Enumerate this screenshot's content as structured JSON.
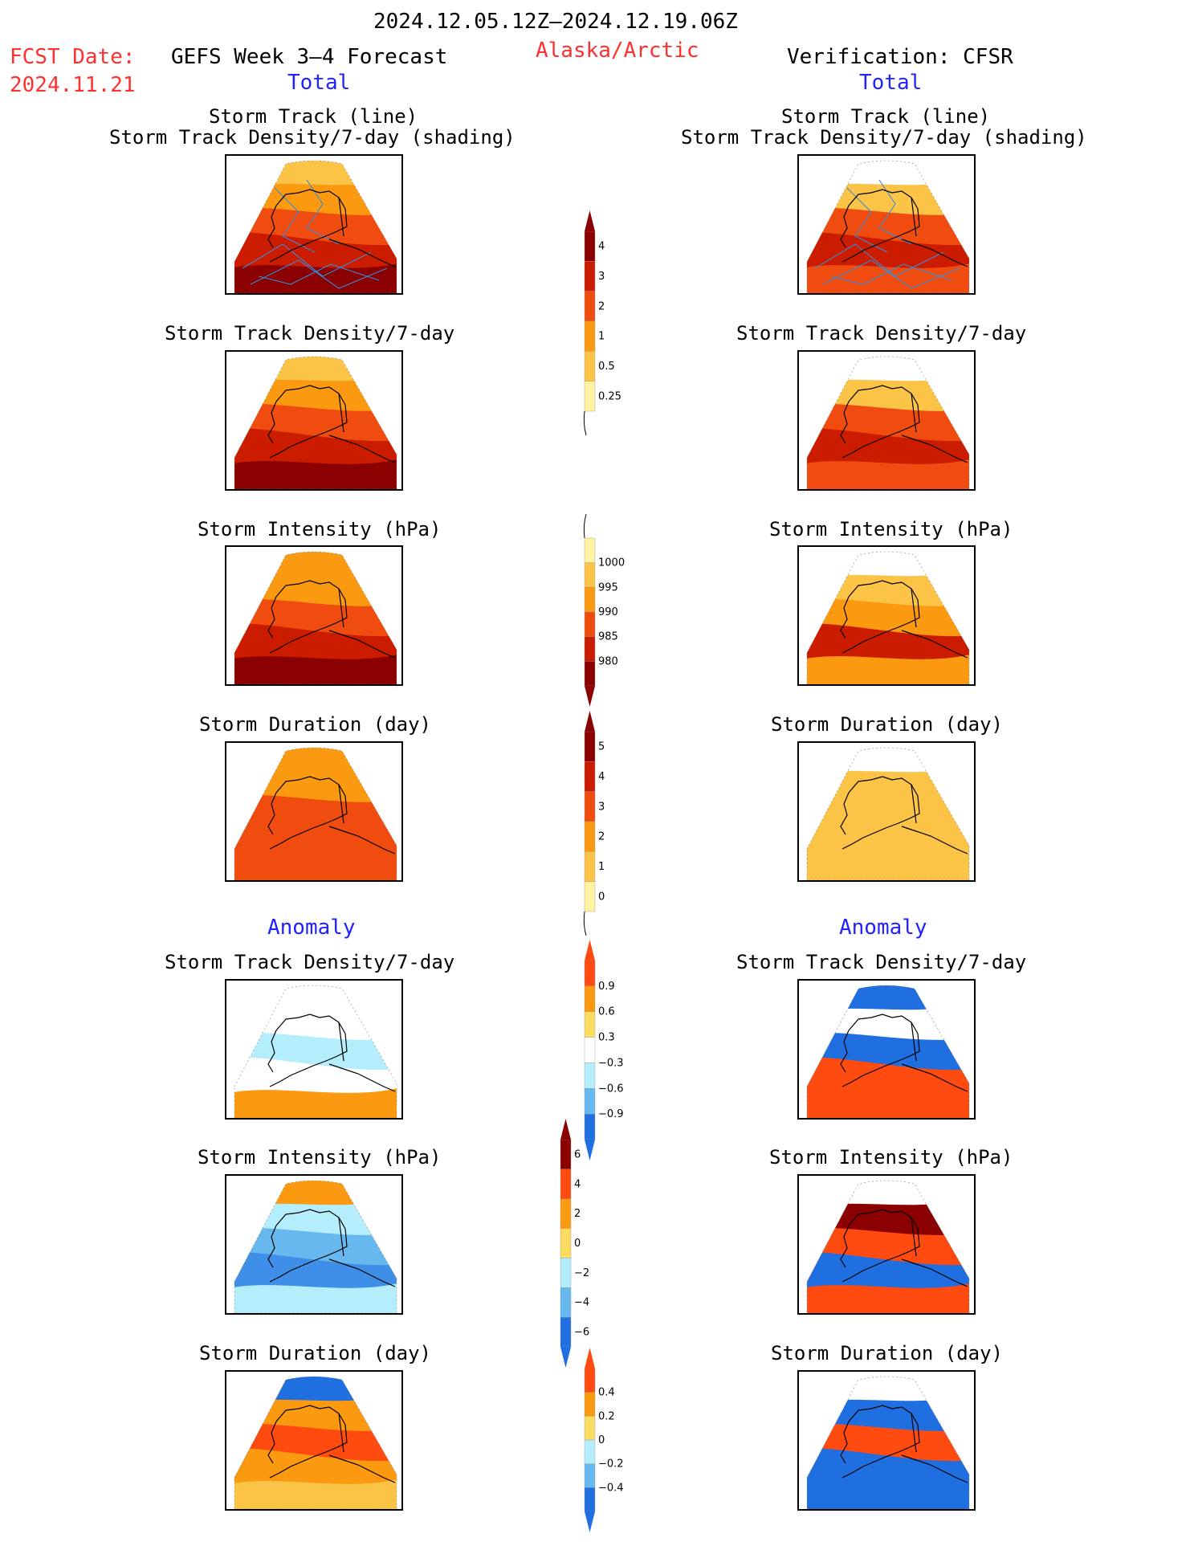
{
  "header": {
    "date_range": "2024.12.05.12Z–2024.12.19.06Z",
    "fcst_label": "FCST Date:",
    "fcst_date": "2024.11.21",
    "forecast_title": "GEFS Week 3–4 Forecast",
    "region": "Alaska/Arctic",
    "verification": "Verification: CFSR"
  },
  "sections": {
    "total": "Total",
    "anomaly": "Anomaly"
  },
  "titles": {
    "track_line": "Storm Track (line)",
    "track_shading": "Storm Track Density/7-day (shading)",
    "density": "Storm Track Density/7-day",
    "intensity": "Storm Intensity (hPa)",
    "duration": "Storm Duration (day)"
  },
  "colorbars": {
    "density": {
      "labels": [
        "4",
        "3",
        "2",
        "1",
        "0.5",
        "0.25"
      ],
      "colors": [
        "#8b0000",
        "#cc1c00",
        "#f04c10",
        "#fb9a10",
        "#fbc447",
        "#fff2a0"
      ]
    },
    "intensity": {
      "labels": [
        "1000",
        "995",
        "990",
        "985",
        "980"
      ],
      "colors": [
        "#fff2a0",
        "#fbc447",
        "#fb9a10",
        "#f04c10",
        "#cc1c00",
        "#8b0000"
      ]
    },
    "duration": {
      "labels": [
        "5",
        "4",
        "3",
        "2",
        "1",
        "0"
      ],
      "colors": [
        "#8b0000",
        "#cc1c00",
        "#f04c10",
        "#fb9a10",
        "#fbc447",
        "#fff2a0"
      ]
    },
    "anom_density": {
      "labels": [
        "0.9",
        "0.6",
        "0.3",
        "−0.3",
        "−0.6",
        "−0.9"
      ],
      "colors": [
        "#ff4a10",
        "#fb9a10",
        "#fbdc60",
        "#ffffff",
        "#b4eefc",
        "#66b8ee",
        "#1f6fe0"
      ]
    },
    "anom_intensity": {
      "labels": [
        "6",
        "4",
        "2",
        "0",
        "−2",
        "−4",
        "−6"
      ],
      "colors": [
        "#8b0000",
        "#ff4a10",
        "#fb9a10",
        "#fbdc60",
        "#b4eefc",
        "#66b8ee",
        "#1f6fe0"
      ]
    },
    "anom_duration": {
      "labels": [
        "0.4",
        "0.2",
        "0",
        "−0.2",
        "−0.4"
      ],
      "colors": [
        "#ff4a10",
        "#fb9a10",
        "#fbdc60",
        "#b4eefc",
        "#66b8ee",
        "#1f6fe0"
      ]
    }
  },
  "maps": [
    {
      "id": "fc-track",
      "bands": [
        "#fbc447",
        "#fb9a10",
        "#f04c10",
        "#cc1c00",
        "#8b0000"
      ],
      "tracks": true
    },
    {
      "id": "fc-density",
      "bands": [
        "#fbc447",
        "#fb9a10",
        "#f04c10",
        "#cc1c00",
        "#8b0000"
      ]
    },
    {
      "id": "fc-intensity",
      "bands": [
        "#fb9a10",
        "#fb9a10",
        "#f04c10",
        "#cc1c00",
        "#8b0000"
      ]
    },
    {
      "id": "fc-duration",
      "bands": [
        "#fb9a10",
        "#fb9a10",
        "#f04c10",
        "#f04c10",
        "#f04c10"
      ]
    },
    {
      "id": "fc-anom-density",
      "bands": [
        "#ffffff",
        "#ffffff",
        "#b4eefc",
        "#ffffff",
        "#fb9a10"
      ]
    },
    {
      "id": "fc-anom-intensity",
      "bands": [
        "#fb9a10",
        "#b4eefc",
        "#66b8ee",
        "#3f8fe8",
        "#b4eefc"
      ]
    },
    {
      "id": "fc-anom-duration",
      "bands": [
        "#1f6fe0",
        "#fb9a10",
        "#ff4a10",
        "#fb9a10",
        "#fbc447"
      ]
    },
    {
      "id": "vr-track",
      "bands": [
        "#ffffff",
        "#fbc447",
        "#f04c10",
        "#cc1c00",
        "#f04c10"
      ],
      "tracks": true
    },
    {
      "id": "vr-density",
      "bands": [
        "#ffffff",
        "#fbc447",
        "#f04c10",
        "#cc1c00",
        "#f04c10"
      ]
    },
    {
      "id": "vr-intensity",
      "bands": [
        "#ffffff",
        "#fbc447",
        "#fb9a10",
        "#cc1c00",
        "#fb9a10"
      ]
    },
    {
      "id": "vr-duration",
      "bands": [
        "#ffffff",
        "#fbc447",
        "#fbc447",
        "#fbc447",
        "#fbc447"
      ]
    },
    {
      "id": "vr-anom-density",
      "bands": [
        "#1f6fe0",
        "#ffffff",
        "#1f6fe0",
        "#ff4a10",
        "#ff4a10"
      ]
    },
    {
      "id": "vr-anom-intensity",
      "bands": [
        "#ffffff",
        "#8b0000",
        "#ff4a10",
        "#1f6fe0",
        "#ff4a10"
      ]
    },
    {
      "id": "vr-anom-duration",
      "bands": [
        "#ffffff",
        "#1f6fe0",
        "#ff4a10",
        "#1f6fe0",
        "#1f6fe0"
      ]
    }
  ]
}
